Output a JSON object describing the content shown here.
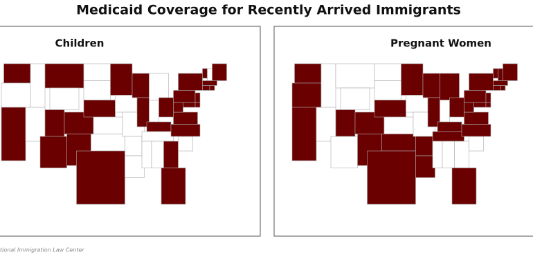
{
  "header": {
    "title": "Medicaid Coverage for Recently Arrived Immigrants"
  },
  "panels": [
    {
      "title": "Children"
    },
    {
      "title": "Pregnant Women"
    }
  ],
  "footer": {
    "source": "tional Immigration Law Center"
  }
}
